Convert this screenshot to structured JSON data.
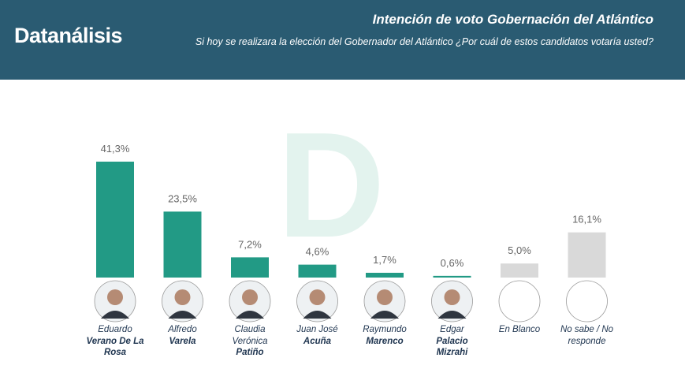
{
  "header": {
    "brand": "Datanálisis"
  },
  "chart_data": {
    "type": "bar",
    "title": "Intención de voto Gobernación del Atlántico",
    "subtitle": "Si hoy se realizara la elección del Gobernador del Atlántico ¿Por cuál de estos candidatos votaría usted?",
    "categories": [
      {
        "given": "Eduardo",
        "surname": "Verano De La Rosa"
      },
      {
        "given": "Alfredo",
        "surname": "Varela"
      },
      {
        "given": "Claudia Verónica",
        "surname": "Patiño"
      },
      {
        "given": "Juan José",
        "surname": "Acuña"
      },
      {
        "given": "Raymundo",
        "surname": "Marenco"
      },
      {
        "given": "Edgar",
        "surname": "Palacio Mizrahi"
      },
      {
        "given": "En Blanco"
      },
      {
        "given": "No sabe / No responde"
      }
    ],
    "values": [
      41.3,
      23.5,
      7.2,
      4.6,
      1.7,
      0.6,
      5.0,
      16.1
    ],
    "value_labels": [
      "41,3%",
      "23,5%",
      "7,2%",
      "4,6%",
      "1,7%",
      "0,6%",
      "5,0%",
      "16,1%"
    ],
    "colors": [
      "#229a85",
      "#229a85",
      "#229a85",
      "#229a85",
      "#229a85",
      "#229a85",
      "#d9d9d9",
      "#d9d9d9"
    ]
  }
}
